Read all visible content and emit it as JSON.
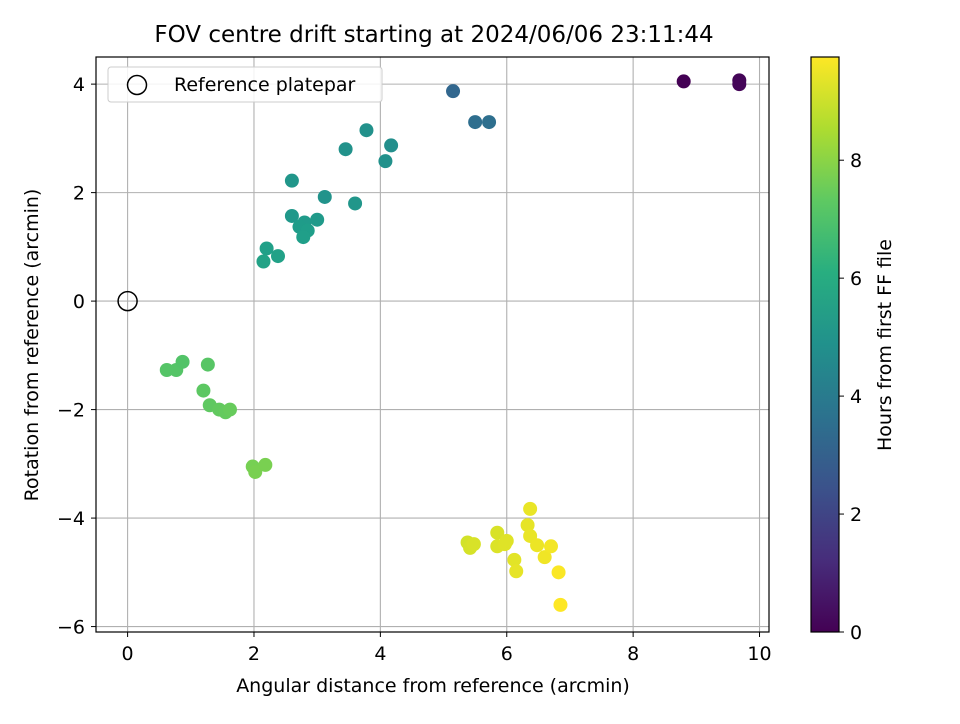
{
  "chart_data": {
    "type": "scatter",
    "title": "FOV centre drift starting at 2024/06/06 23:11:44",
    "xlabel": "Angular distance from reference (arcmin)",
    "ylabel": "Rotation from reference (arcmin)",
    "xlim": [
      -0.5,
      10.15
    ],
    "ylim": [
      -6.1,
      4.5
    ],
    "xticks": [
      "0",
      "2",
      "4",
      "6",
      "8",
      "10"
    ],
    "yticks": [
      "4",
      "2",
      "0",
      "−2",
      "−4",
      "−6"
    ],
    "grid": true,
    "legend": {
      "position": "top-left",
      "entries": [
        "Reference platepar"
      ]
    },
    "reference_point": {
      "x": 0,
      "y": 0
    },
    "colormap": "viridis",
    "colorbar": {
      "label": "Hours from first FF file",
      "range": [
        0,
        9.75
      ],
      "ticks": [
        "0",
        "2",
        "4",
        "6",
        "8"
      ]
    },
    "points": [
      {
        "x": 8.8,
        "y": 4.05,
        "h": 0.0
      },
      {
        "x": 9.68,
        "y": 4.07,
        "h": 0.1
      },
      {
        "x": 9.68,
        "y": 4.0,
        "h": 0.15
      },
      {
        "x": 5.15,
        "y": 3.87,
        "h": 3.2
      },
      {
        "x": 5.5,
        "y": 3.3,
        "h": 3.5
      },
      {
        "x": 5.72,
        "y": 3.3,
        "h": 3.55
      },
      {
        "x": 3.78,
        "y": 3.15,
        "h": 4.9
      },
      {
        "x": 3.45,
        "y": 2.8,
        "h": 4.95
      },
      {
        "x": 4.17,
        "y": 2.87,
        "h": 4.85
      },
      {
        "x": 4.08,
        "y": 2.58,
        "h": 4.9
      },
      {
        "x": 2.6,
        "y": 2.22,
        "h": 5.1
      },
      {
        "x": 3.12,
        "y": 1.92,
        "h": 5.0
      },
      {
        "x": 3.6,
        "y": 1.8,
        "h": 5.1
      },
      {
        "x": 2.6,
        "y": 1.57,
        "h": 5.2
      },
      {
        "x": 3.0,
        "y": 1.5,
        "h": 5.25
      },
      {
        "x": 2.8,
        "y": 1.45,
        "h": 5.3
      },
      {
        "x": 2.72,
        "y": 1.37,
        "h": 5.35
      },
      {
        "x": 2.85,
        "y": 1.3,
        "h": 5.4
      },
      {
        "x": 2.78,
        "y": 1.18,
        "h": 5.45
      },
      {
        "x": 2.2,
        "y": 0.97,
        "h": 5.5
      },
      {
        "x": 2.38,
        "y": 0.83,
        "h": 5.55
      },
      {
        "x": 2.15,
        "y": 0.73,
        "h": 5.6
      },
      {
        "x": 0.62,
        "y": -1.27,
        "h": 7.1
      },
      {
        "x": 0.77,
        "y": -1.27,
        "h": 7.1
      },
      {
        "x": 0.87,
        "y": -1.12,
        "h": 7.05
      },
      {
        "x": 1.27,
        "y": -1.17,
        "h": 7.15
      },
      {
        "x": 1.2,
        "y": -1.65,
        "h": 7.25
      },
      {
        "x": 1.3,
        "y": -1.92,
        "h": 7.3
      },
      {
        "x": 1.45,
        "y": -2.0,
        "h": 7.35
      },
      {
        "x": 1.55,
        "y": -2.05,
        "h": 7.4
      },
      {
        "x": 1.62,
        "y": -2.0,
        "h": 7.45
      },
      {
        "x": 1.98,
        "y": -3.05,
        "h": 7.7
      },
      {
        "x": 2.02,
        "y": -3.15,
        "h": 7.75
      },
      {
        "x": 2.18,
        "y": -3.02,
        "h": 7.75
      },
      {
        "x": 5.38,
        "y": -4.45,
        "h": 9.1
      },
      {
        "x": 5.45,
        "y": -4.5,
        "h": 9.15
      },
      {
        "x": 5.42,
        "y": -4.55,
        "h": 9.15
      },
      {
        "x": 5.48,
        "y": -4.48,
        "h": 9.2
      },
      {
        "x": 5.85,
        "y": -4.27,
        "h": 9.2
      },
      {
        "x": 5.85,
        "y": -4.52,
        "h": 9.25
      },
      {
        "x": 5.97,
        "y": -4.48,
        "h": 9.3
      },
      {
        "x": 6.0,
        "y": -4.42,
        "h": 9.3
      },
      {
        "x": 6.12,
        "y": -4.77,
        "h": 9.35
      },
      {
        "x": 6.15,
        "y": -4.98,
        "h": 9.4
      },
      {
        "x": 6.33,
        "y": -4.13,
        "h": 9.4
      },
      {
        "x": 6.37,
        "y": -3.83,
        "h": 9.45
      },
      {
        "x": 6.37,
        "y": -4.33,
        "h": 9.45
      },
      {
        "x": 6.48,
        "y": -4.5,
        "h": 9.5
      },
      {
        "x": 6.6,
        "y": -4.72,
        "h": 9.55
      },
      {
        "x": 6.7,
        "y": -4.52,
        "h": 9.6
      },
      {
        "x": 6.82,
        "y": -5.0,
        "h": 9.7
      },
      {
        "x": 6.85,
        "y": -5.6,
        "h": 9.75
      }
    ]
  }
}
